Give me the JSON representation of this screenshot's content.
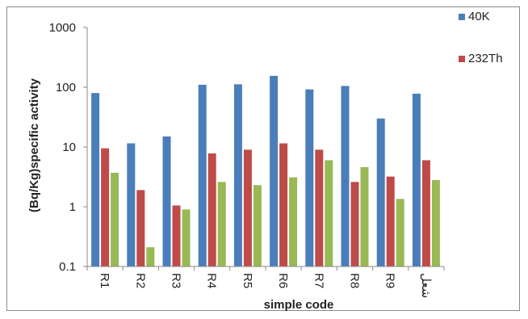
{
  "chart_data": {
    "type": "bar",
    "title": "",
    "xlabel": "simple code",
    "ylabel": "(Bq/Kg)specific activity",
    "yscale": "log",
    "ylim": [
      0.1,
      1000
    ],
    "yticks": [
      "0.1",
      "1",
      "10",
      "100",
      "1000"
    ],
    "categories": [
      "R1",
      "R2",
      "R3",
      "R4",
      "R5",
      "R6",
      "R7",
      "R8",
      "R9",
      "شعل"
    ],
    "series": [
      {
        "name": "40K",
        "color": "#4a7ebb",
        "values": [
          80,
          11.5,
          15,
          110,
          112,
          155,
          92,
          105,
          30,
          78
        ]
      },
      {
        "name": "232Th",
        "color": "#be4b48",
        "values": [
          9.5,
          1.9,
          1.05,
          7.8,
          9,
          11.5,
          9,
          2.6,
          3.2,
          6
        ]
      },
      {
        "name": "",
        "color": "#98b954",
        "values": [
          3.7,
          0.21,
          0.9,
          2.6,
          2.3,
          3.1,
          6,
          4.6,
          1.35,
          2.8
        ]
      }
    ],
    "legend_position": "top-right",
    "grid": false
  }
}
